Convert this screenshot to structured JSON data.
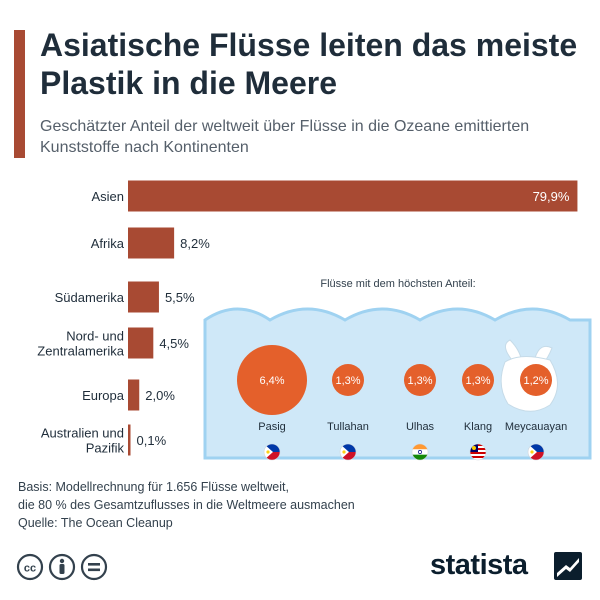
{
  "header": {
    "title": "Asiatische Flüsse leiten das meiste Plastik in die Meere",
    "subtitle": "Geschätzter Anteil der weltweit über Flüsse in die Ozeane emittierten Kunststoffe nach Kontinenten"
  },
  "colors": {
    "bar": "#a84a33",
    "accent_bar": "#a84a33",
    "water": "#cfe8f8",
    "water_edge": "#9fd2f1",
    "river_bubble": "#e4602b"
  },
  "chart_data": [
    {
      "type": "bar",
      "orientation": "horizontal",
      "categories": [
        "Asien",
        "Afrika",
        "Südamerika",
        "Nord- und Zentralamerika",
        "Europa",
        "Australien und Pazifik"
      ],
      "values": [
        79.9,
        8.2,
        5.5,
        4.5,
        2.0,
        0.1
      ],
      "value_labels": [
        "79,9%",
        "8,2%",
        "5,5%",
        "4,5%",
        "2,0%",
        "0,1%"
      ],
      "xlim": [
        0,
        80
      ],
      "grid": false
    },
    {
      "type": "bubble",
      "title": "Flüsse mit dem höchsten Anteil:",
      "categories": [
        "Pasig",
        "Tullahan",
        "Ulhas",
        "Klang",
        "Meycauayan"
      ],
      "values": [
        6.4,
        1.3,
        1.3,
        1.3,
        1.2
      ],
      "value_labels": [
        "6,4%",
        "1,3%",
        "1,3%",
        "1,3%",
        "1,2%"
      ],
      "flags": [
        "philippines-flag-icon",
        "philippines-flag-icon",
        "india-flag-icon",
        "malaysia-flag-icon",
        "philippines-flag-icon"
      ]
    }
  ],
  "footer": {
    "basis_line1": "Basis: Modellrechnung für 1.656 Flüsse weltweit,",
    "basis_line2": "die 80 % des Gesamtzuflusses in die Weltmeere ausmachen",
    "source": "Quelle: The Ocean Cleanup",
    "logo": "statista"
  }
}
